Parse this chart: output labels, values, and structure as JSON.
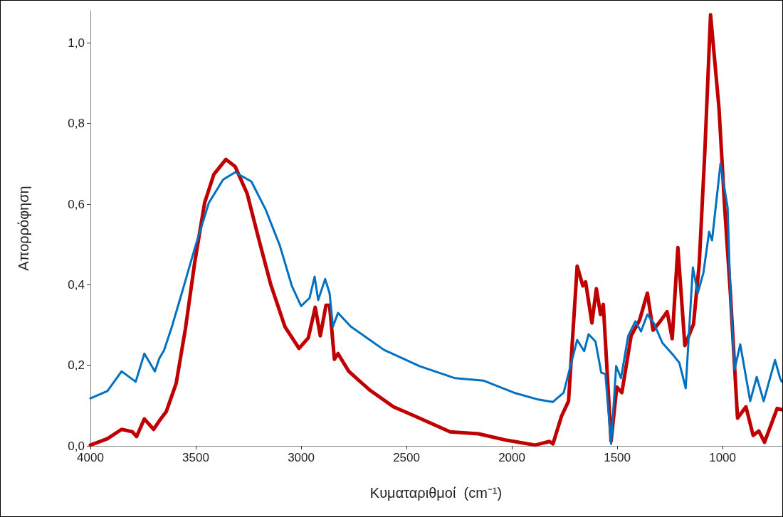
{
  "chart_data": {
    "type": "line",
    "xlabel": "Κυματαριθμοί  (cm⁻¹)",
    "ylabel": "Απορρόφηση",
    "xlim": [
      4000,
      720
    ],
    "xticks": [
      4000,
      3500,
      3000,
      2500,
      2000,
      1500,
      1000
    ],
    "ylim": [
      0,
      1.08
    ],
    "yticks": [
      {
        "value": 0,
        "label": "0,0"
      },
      {
        "value": 0.2,
        "label": "0,2"
      },
      {
        "value": 0.4,
        "label": "0,4"
      },
      {
        "value": 0.6,
        "label": "0,6"
      },
      {
        "value": 0.8,
        "label": "0,8"
      },
      {
        "value": 1.0,
        "label": "1,0"
      }
    ],
    "marker": "none",
    "line_style": "solid",
    "series": [
      {
        "color": "#c00000",
        "x": [
          4000,
          3919,
          3852,
          3801,
          3781,
          3744,
          3700,
          3673,
          3640,
          3593,
          3549,
          3505,
          3458,
          3414,
          3357,
          3313,
          3256,
          3202,
          3145,
          3077,
          3010,
          2966,
          2933,
          2909,
          2882,
          2865,
          2842,
          2825,
          2774,
          2673,
          2562,
          2461,
          2293,
          2158,
          2024,
          1889,
          1822,
          1805,
          1764,
          1731,
          1690,
          1663,
          1650,
          1620,
          1599,
          1579,
          1566,
          1529,
          1502,
          1478,
          1434,
          1394,
          1357,
          1330,
          1296,
          1263,
          1239,
          1212,
          1179,
          1138,
          1111,
          1084,
          1057,
          1017,
          990,
          963,
          929,
          889,
          855,
          828,
          801,
          741,
          720
        ],
        "values": [
          0.002,
          0.018,
          0.041,
          0.035,
          0.023,
          0.067,
          0.041,
          0.062,
          0.085,
          0.155,
          0.291,
          0.455,
          0.603,
          0.674,
          0.711,
          0.693,
          0.626,
          0.515,
          0.402,
          0.296,
          0.242,
          0.268,
          0.344,
          0.273,
          0.349,
          0.349,
          0.215,
          0.229,
          0.185,
          0.138,
          0.097,
          0.074,
          0.035,
          0.03,
          0.014,
          0.002,
          0.011,
          0.005,
          0.074,
          0.111,
          0.446,
          0.397,
          0.407,
          0.305,
          0.39,
          0.326,
          0.351,
          0.012,
          0.146,
          0.132,
          0.273,
          0.312,
          0.379,
          0.287,
          0.309,
          0.333,
          0.266,
          0.492,
          0.249,
          0.302,
          0.45,
          0.732,
          1.07,
          0.838,
          0.591,
          0.379,
          0.069,
          0.097,
          0.026,
          0.037,
          0.009,
          0.093,
          0.09
        ]
      },
      {
        "color": "#0070c0",
        "x": [
          4000,
          3919,
          3852,
          3785,
          3744,
          3694,
          3673,
          3650,
          3616,
          3559,
          3505,
          3438,
          3370,
          3313,
          3236,
          3168,
          3101,
          3044,
          3000,
          2960,
          2936,
          2919,
          2886,
          2865,
          2849,
          2825,
          2764,
          2606,
          2438,
          2269,
          2135,
          1990,
          1875,
          1805,
          1754,
          1744,
          1690,
          1657,
          1636,
          1603,
          1576,
          1556,
          1529,
          1505,
          1482,
          1448,
          1414,
          1387,
          1357,
          1327,
          1286,
          1232,
          1205,
          1175,
          1141,
          1118,
          1091,
          1064,
          1050,
          1010,
          976,
          963,
          943,
          916,
          869,
          838,
          805,
          751,
          727,
          720
        ],
        "values": [
          0.118,
          0.136,
          0.185,
          0.159,
          0.229,
          0.185,
          0.217,
          0.238,
          0.291,
          0.392,
          0.49,
          0.603,
          0.661,
          0.679,
          0.656,
          0.586,
          0.497,
          0.397,
          0.347,
          0.367,
          0.42,
          0.362,
          0.414,
          0.379,
          0.296,
          0.33,
          0.296,
          0.238,
          0.198,
          0.168,
          0.162,
          0.132,
          0.115,
          0.109,
          0.132,
          0.153,
          0.263,
          0.235,
          0.277,
          0.259,
          0.182,
          0.178,
          0.005,
          0.198,
          0.168,
          0.273,
          0.309,
          0.284,
          0.326,
          0.305,
          0.256,
          0.224,
          0.206,
          0.143,
          0.443,
          0.379,
          0.429,
          0.531,
          0.51,
          0.7,
          0.591,
          0.379,
          0.189,
          0.252,
          0.111,
          0.171,
          0.111,
          0.213,
          0.168,
          0.16
        ]
      }
    ]
  }
}
